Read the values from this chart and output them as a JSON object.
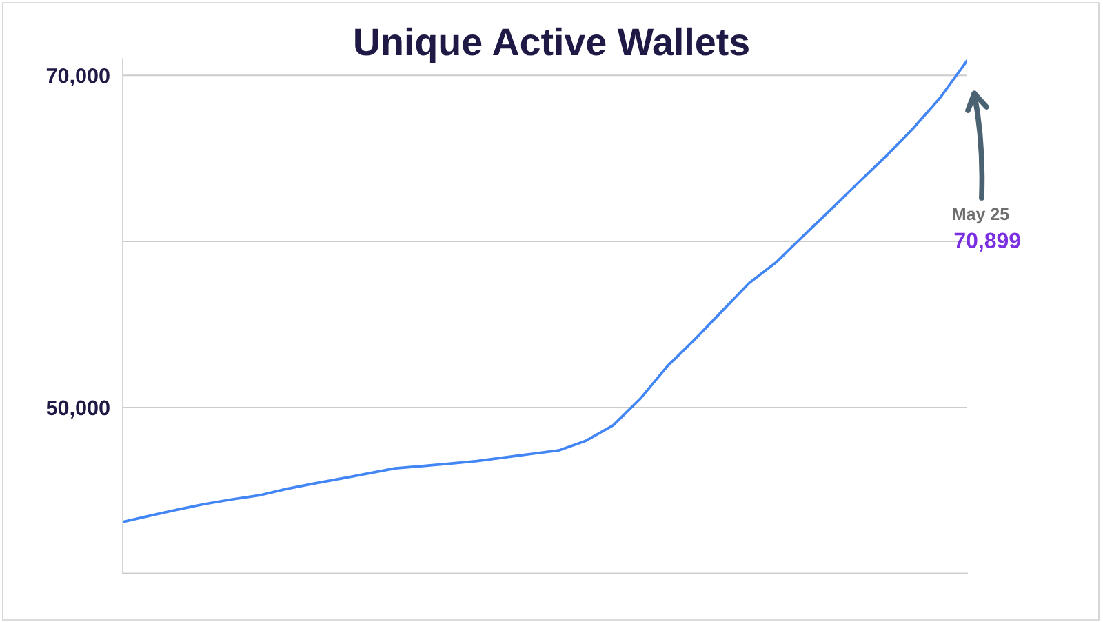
{
  "chart_data": {
    "type": "line",
    "title": "Unique Active Wallets",
    "categories": [
      null,
      null,
      null,
      null,
      null,
      null,
      null,
      null,
      null,
      null,
      null,
      null,
      null,
      null,
      null,
      null,
      null,
      null,
      null,
      null,
      null,
      null,
      null,
      null,
      null,
      null,
      null,
      null,
      null,
      null,
      null,
      null
    ],
    "values": [
      43100,
      43480,
      43840,
      44180,
      44460,
      44700,
      45090,
      45410,
      45710,
      46020,
      46330,
      46470,
      46610,
      46770,
      46990,
      47200,
      47410,
      47990,
      48920,
      50530,
      52500,
      54100,
      55800,
      57500,
      58760,
      60360,
      61930,
      63530,
      65100,
      66780,
      68640,
      70899
    ],
    "color": "#4285f4",
    "annotations": [
      "May 25",
      "70,899"
    ],
    "ylim": [
      40000,
      71000
    ],
    "yticks": [
      {
        "value": 40000,
        "label": null
      },
      {
        "value": 50000,
        "label": "50,000"
      },
      {
        "value": 60000,
        "label": null
      },
      {
        "value": 70000,
        "label": "70,000"
      }
    ],
    "grid": "y"
  }
}
